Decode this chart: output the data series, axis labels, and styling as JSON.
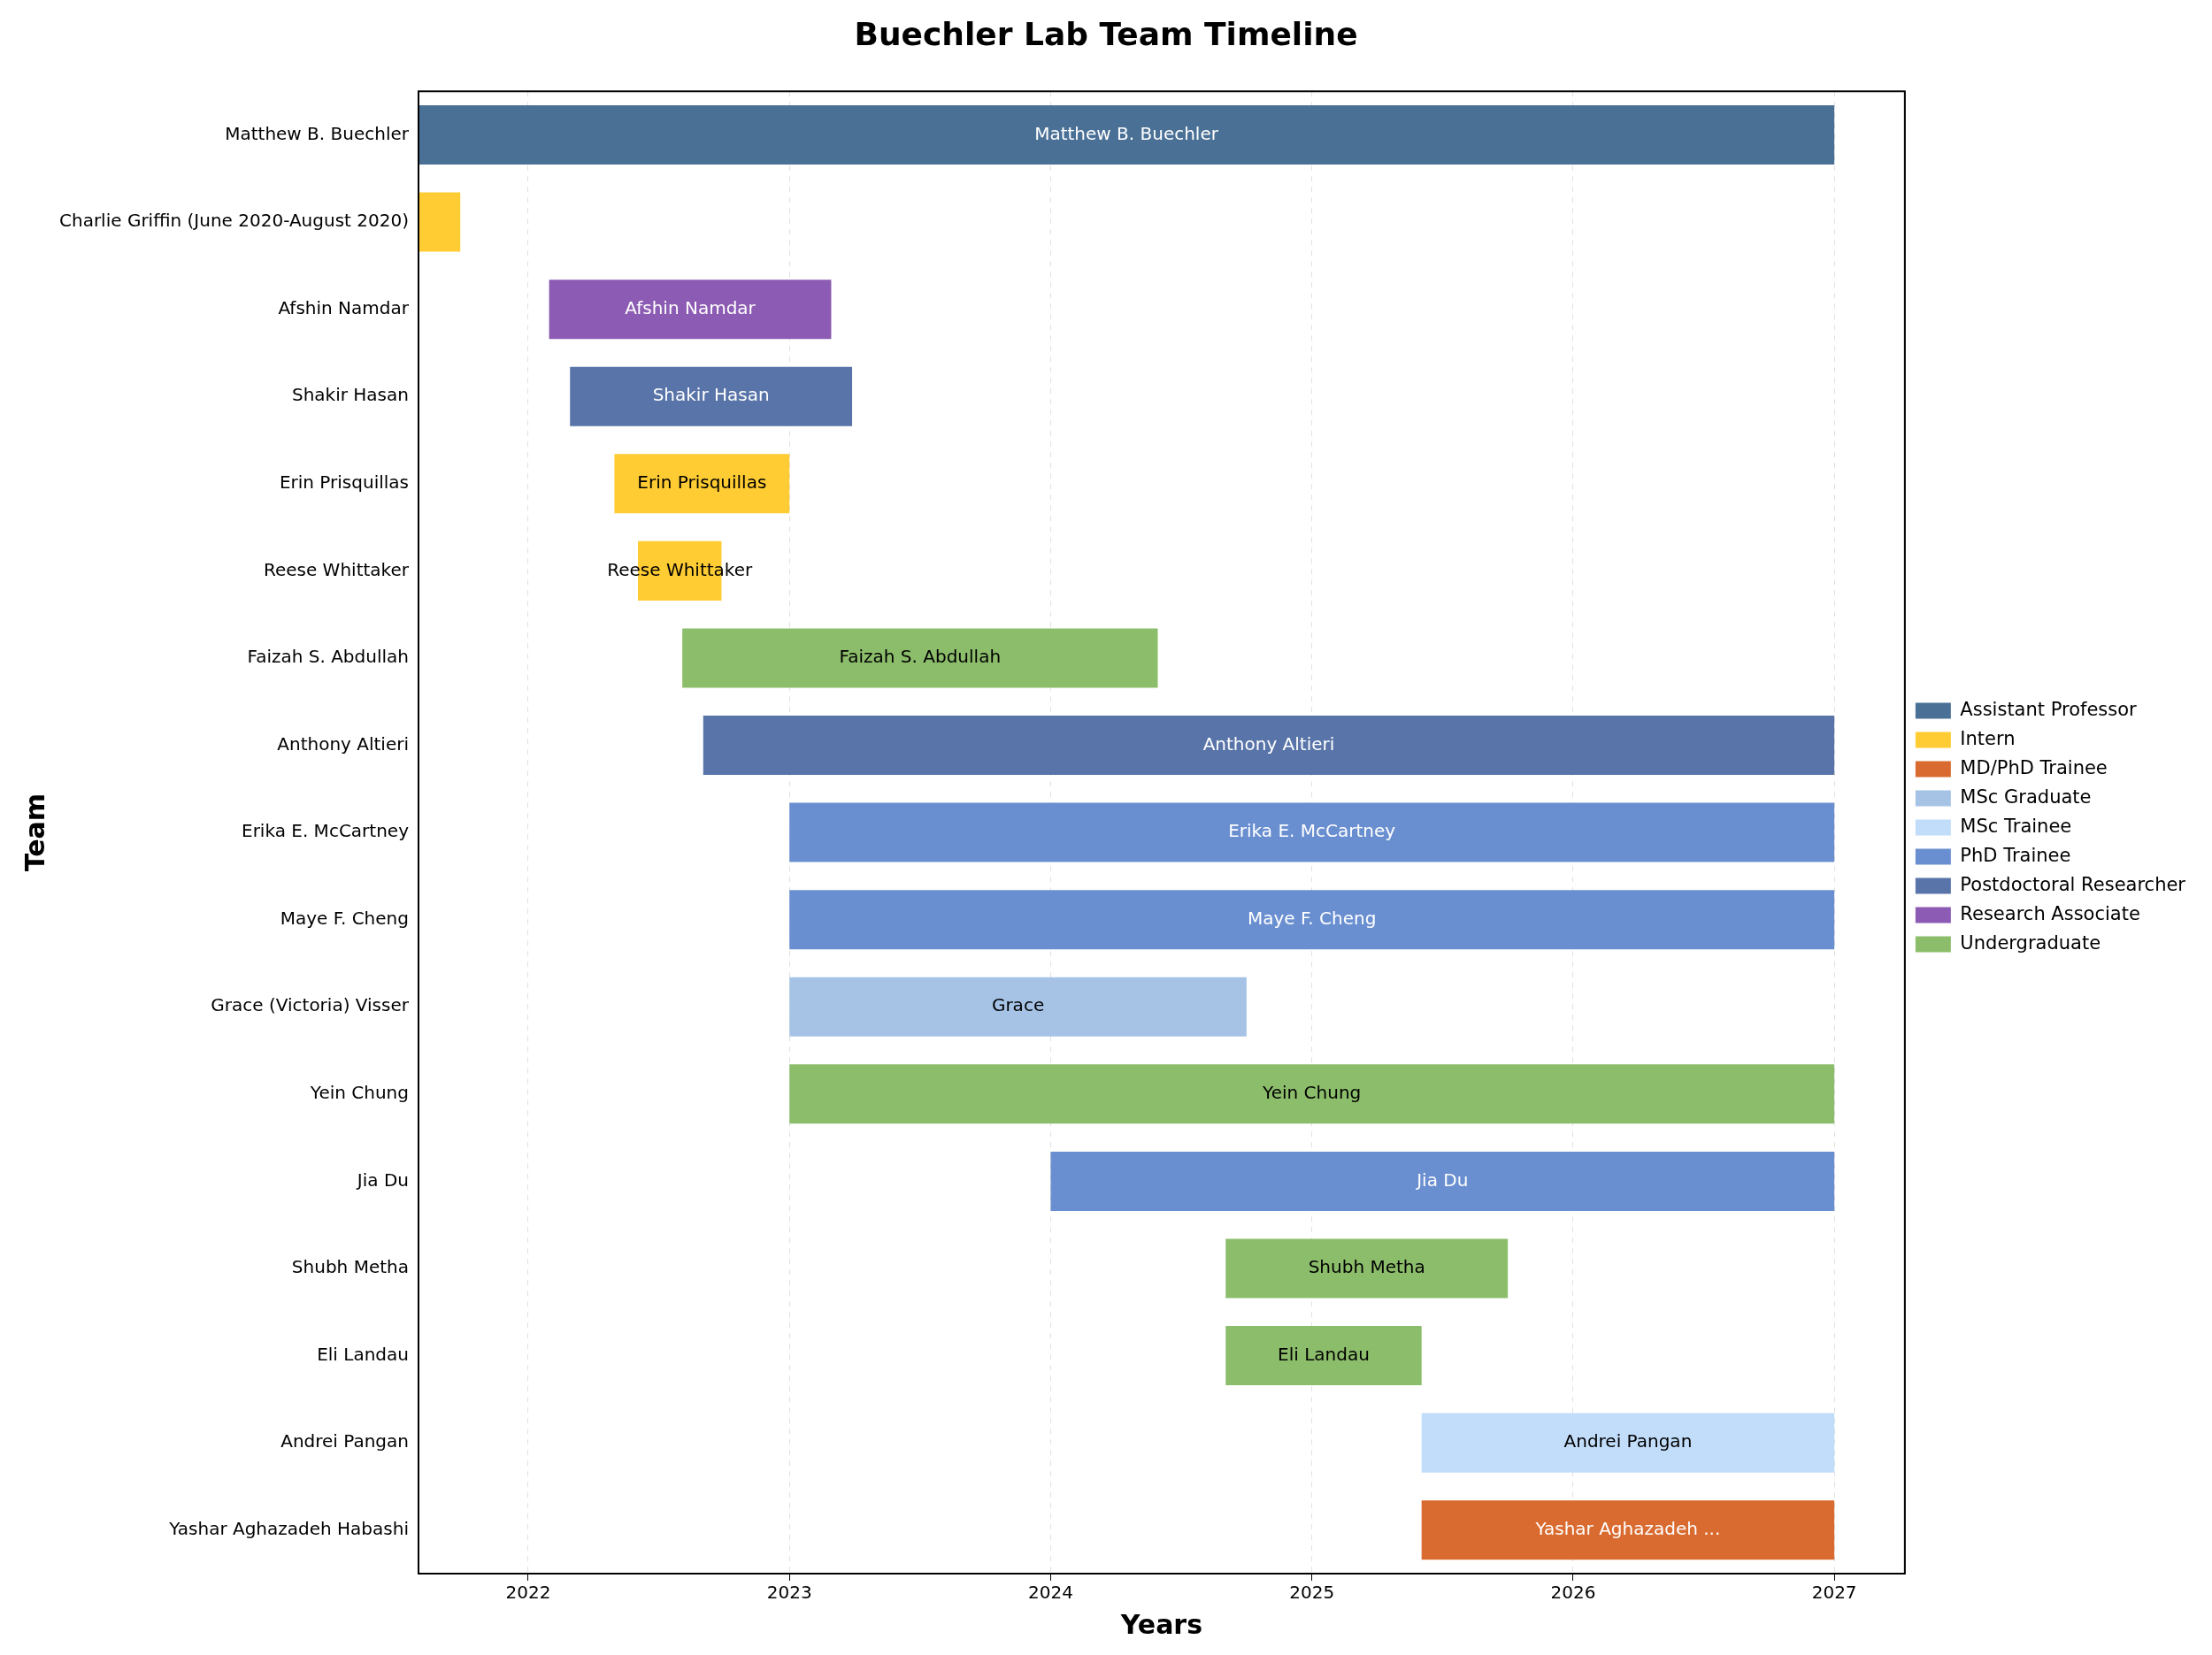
{
  "chart_data": {
    "type": "bar",
    "orientation": "horizontal",
    "title": "Buechler Lab Team Timeline",
    "xlabel": "Years",
    "ylabel": "Team",
    "categories": [
      "Matthew B. Buechler",
      "Charlie Griffin (June 2020-August 2020)",
      "Afshin Namdar",
      "Shakir Hasan",
      "Erin Prisquillas",
      "Reese Whittaker",
      "Faizah S. Abdullah",
      "Anthony Altieri",
      "Erika E. McCartney",
      "Maye F. Cheng",
      "Grace (Victoria) Visser",
      "Yein Chung",
      "Jia Du",
      "Shubh Metha",
      "Eli Landau",
      "Andrei Pangan",
      "Yashar Aghazadeh Habashi"
    ],
    "series": [
      {
        "name": "Assistant Professor",
        "color": "#4a7096",
        "base": [
          2021.58,
          null,
          null,
          null,
          null,
          null,
          null,
          null,
          null,
          null,
          null,
          null,
          null,
          null,
          null,
          null,
          null
        ],
        "values": [
          5.42,
          null,
          null,
          null,
          null,
          null,
          null,
          null,
          null,
          null,
          null,
          null,
          null,
          null,
          null,
          null,
          null
        ],
        "value_labels": [
          "Matthew B. Buechler",
          null,
          null,
          null,
          null,
          null,
          null,
          null,
          null,
          null,
          null,
          null,
          null,
          null,
          null,
          null,
          null
        ]
      },
      {
        "name": "Intern",
        "color": "#ffcc33",
        "base": [
          null,
          2021.58,
          null,
          null,
          2022.33,
          2022.42,
          null,
          null,
          null,
          null,
          null,
          null,
          null,
          null,
          null,
          null,
          null
        ],
        "values": [
          null,
          0.16,
          null,
          null,
          0.67,
          0.32,
          null,
          null,
          null,
          null,
          null,
          null,
          null,
          null,
          null,
          null,
          null
        ],
        "value_labels": [
          null,
          null,
          null,
          null,
          "Erin Prisquillas",
          "Reese Whittaker",
          null,
          null,
          null,
          null,
          null,
          null,
          null,
          null,
          null,
          null,
          null
        ]
      },
      {
        "name": "MD/PhD Trainee",
        "color": "#d96b30",
        "base": [
          null,
          null,
          null,
          null,
          null,
          null,
          null,
          null,
          null,
          null,
          null,
          null,
          null,
          null,
          null,
          null,
          2025.42
        ],
        "values": [
          null,
          null,
          null,
          null,
          null,
          null,
          null,
          null,
          null,
          null,
          null,
          null,
          null,
          null,
          null,
          null,
          1.58
        ],
        "value_labels": [
          null,
          null,
          null,
          null,
          null,
          null,
          null,
          null,
          null,
          null,
          null,
          null,
          null,
          null,
          null,
          null,
          "Yashar Aghazadeh ..."
        ]
      },
      {
        "name": "MSc Graduate",
        "color": "#a6c3e6",
        "base": [
          null,
          null,
          null,
          null,
          null,
          null,
          null,
          null,
          null,
          null,
          2023.0,
          null,
          null,
          null,
          null,
          null,
          null
        ],
        "values": [
          null,
          null,
          null,
          null,
          null,
          null,
          null,
          null,
          null,
          null,
          1.75,
          null,
          null,
          null,
          null,
          null,
          null
        ],
        "value_labels": [
          null,
          null,
          null,
          null,
          null,
          null,
          null,
          null,
          null,
          null,
          "Grace",
          null,
          null,
          null,
          null,
          null,
          null
        ]
      },
      {
        "name": "MSc Trainee",
        "color": "#c2ddfa",
        "base": [
          null,
          null,
          null,
          null,
          null,
          null,
          null,
          null,
          null,
          null,
          null,
          null,
          null,
          null,
          null,
          2025.42,
          null
        ],
        "values": [
          null,
          null,
          null,
          null,
          null,
          null,
          null,
          null,
          null,
          null,
          null,
          null,
          null,
          null,
          null,
          1.58,
          null
        ],
        "value_labels": [
          null,
          null,
          null,
          null,
          null,
          null,
          null,
          null,
          null,
          null,
          null,
          null,
          null,
          null,
          null,
          "Andrei Pangan",
          null
        ]
      },
      {
        "name": "PhD Trainee",
        "color": "#6a8fd0",
        "base": [
          null,
          null,
          null,
          null,
          null,
          null,
          null,
          null,
          2023.0,
          2023.0,
          null,
          null,
          2024.0,
          null,
          null,
          null,
          null
        ],
        "values": [
          null,
          null,
          null,
          null,
          null,
          null,
          null,
          null,
          4,
          4,
          null,
          null,
          3,
          null,
          null,
          null,
          null
        ],
        "value_labels": [
          null,
          null,
          null,
          null,
          null,
          null,
          null,
          null,
          "Erika E. McCartney",
          "Maye F. Cheng",
          null,
          null,
          "Jia Du",
          null,
          null,
          null,
          null
        ]
      },
      {
        "name": "Postdoctoral Researcher",
        "color": "#5874a8",
        "base": [
          null,
          null,
          null,
          2022.16,
          null,
          null,
          null,
          2022.67,
          null,
          null,
          null,
          null,
          null,
          null,
          null,
          null,
          null
        ],
        "values": [
          null,
          null,
          null,
          1.08,
          null,
          null,
          null,
          4.33,
          null,
          null,
          null,
          null,
          null,
          null,
          null,
          null,
          null
        ],
        "value_labels": [
          null,
          null,
          null,
          "Shakir Hasan",
          null,
          null,
          null,
          "Anthony Altieri",
          null,
          null,
          null,
          null,
          null,
          null,
          null,
          null,
          null
        ]
      },
      {
        "name": "Research Associate",
        "color": "#8c5bb3",
        "base": [
          null,
          null,
          2022.08,
          null,
          null,
          null,
          null,
          null,
          null,
          null,
          null,
          null,
          null,
          null,
          null,
          null,
          null
        ],
        "values": [
          null,
          null,
          1.08,
          null,
          null,
          null,
          null,
          null,
          null,
          null,
          null,
          null,
          null,
          null,
          null,
          null,
          null
        ],
        "value_labels": [
          null,
          null,
          "Afshin Namdar",
          null,
          null,
          null,
          null,
          null,
          null,
          null,
          null,
          null,
          null,
          null,
          null,
          null,
          null
        ]
      },
      {
        "name": "Undergraduate",
        "color": "#8cbd6b",
        "base": [
          null,
          null,
          null,
          null,
          null,
          null,
          2022.59,
          null,
          null,
          null,
          null,
          2023.0,
          null,
          2024.67,
          2024.67,
          null,
          null
        ],
        "values": [
          null,
          null,
          null,
          null,
          null,
          null,
          1.82,
          null,
          null,
          null,
          null,
          4,
          null,
          1.08,
          0.75,
          null,
          null
        ],
        "value_labels": [
          null,
          null,
          null,
          null,
          null,
          null,
          "Faizah S. Abdullah",
          null,
          null,
          null,
          null,
          "Yein Chung",
          null,
          "Shubh Metha",
          "Eli Landau",
          null,
          null
        ]
      }
    ],
    "xlim": [
      2021.58,
      2027.27
    ],
    "xticks": [
      2022,
      2023,
      2024,
      2025,
      2026,
      2027
    ],
    "grid": "x",
    "legend": "right"
  }
}
